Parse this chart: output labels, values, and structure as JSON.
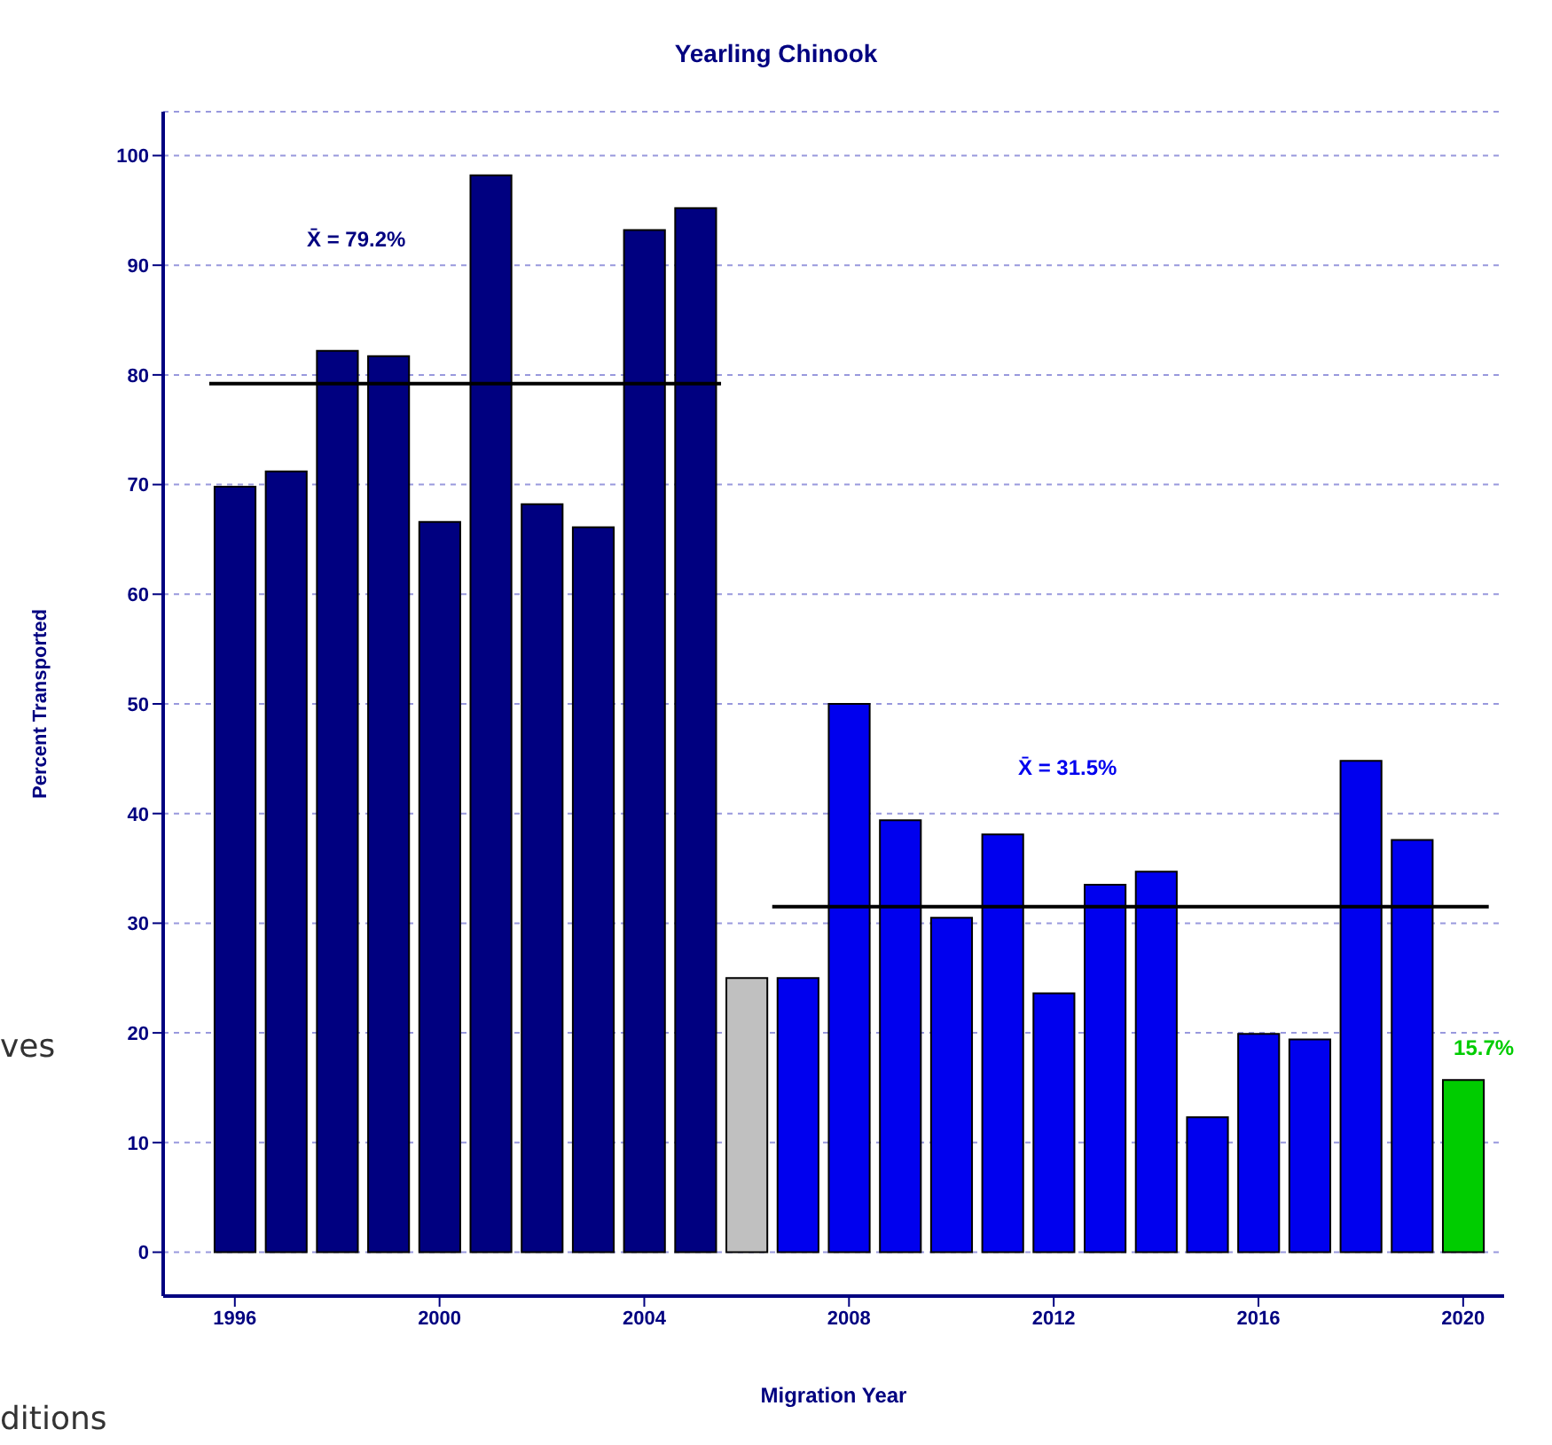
{
  "chart_data": {
    "type": "bar",
    "title": "Yearling Chinook",
    "xlabel": "Migration Year",
    "ylabel": "Percent Transported",
    "x": [
      1996,
      1997,
      1998,
      1999,
      2000,
      2001,
      2002,
      2003,
      2004,
      2005,
      2006,
      2007,
      2008,
      2009,
      2010,
      2011,
      2012,
      2013,
      2014,
      2015,
      2016,
      2017,
      2018,
      2019,
      2020
    ],
    "xlim": [
      1994.6,
      2020.8
    ],
    "xticks": [
      1996,
      2000,
      2004,
      2008,
      2012,
      2016,
      2020
    ],
    "ylim": [
      -4,
      104
    ],
    "yticks": [
      0,
      10,
      20,
      30,
      40,
      50,
      60,
      70,
      80,
      90,
      100
    ],
    "grid": "y",
    "legend": false,
    "series": [
      {
        "colors": [
          "#000080",
          "#000080",
          "#000080",
          "#000080",
          "#000080",
          "#000080",
          "#000080",
          "#000080",
          "#000080",
          "#000080",
          "#c0c0c0",
          "#0000ee",
          "#0000ee",
          "#0000ee",
          "#0000ee",
          "#0000ee",
          "#0000ee",
          "#0000ee",
          "#0000ee",
          "#0000ee",
          "#0000ee",
          "#0000ee",
          "#0000ee",
          "#0000ee",
          "#00cc00"
        ],
        "values": [
          69.8,
          71.2,
          82.2,
          81.7,
          66.6,
          98.2,
          68.2,
          66.1,
          93.2,
          95.2,
          25,
          25,
          50,
          39.4,
          30.5,
          38.1,
          23.6,
          33.5,
          34.7,
          12.3,
          19.9,
          19.4,
          44.8,
          37.6,
          15.7
        ],
        "value_labels": [
          null,
          null,
          null,
          null,
          null,
          null,
          null,
          null,
          null,
          null,
          null,
          null,
          null,
          null,
          null,
          null,
          null,
          null,
          null,
          null,
          null,
          null,
          null,
          null,
          "15.7%"
        ]
      },
      {
        "type": "line",
        "color": "#000000",
        "x": [
          1995.5,
          2005.5
        ],
        "values": [
          79.2,
          79.2
        ]
      },
      {
        "type": "line",
        "color": "#000000",
        "x": [
          2006.5,
          2020.5
        ],
        "values": [
          31.5,
          31.5
        ]
      }
    ],
    "annotations": [
      "X̄ = 79.2%",
      "X̄ = 31.5%",
      "ves",
      "ditions"
    ]
  }
}
